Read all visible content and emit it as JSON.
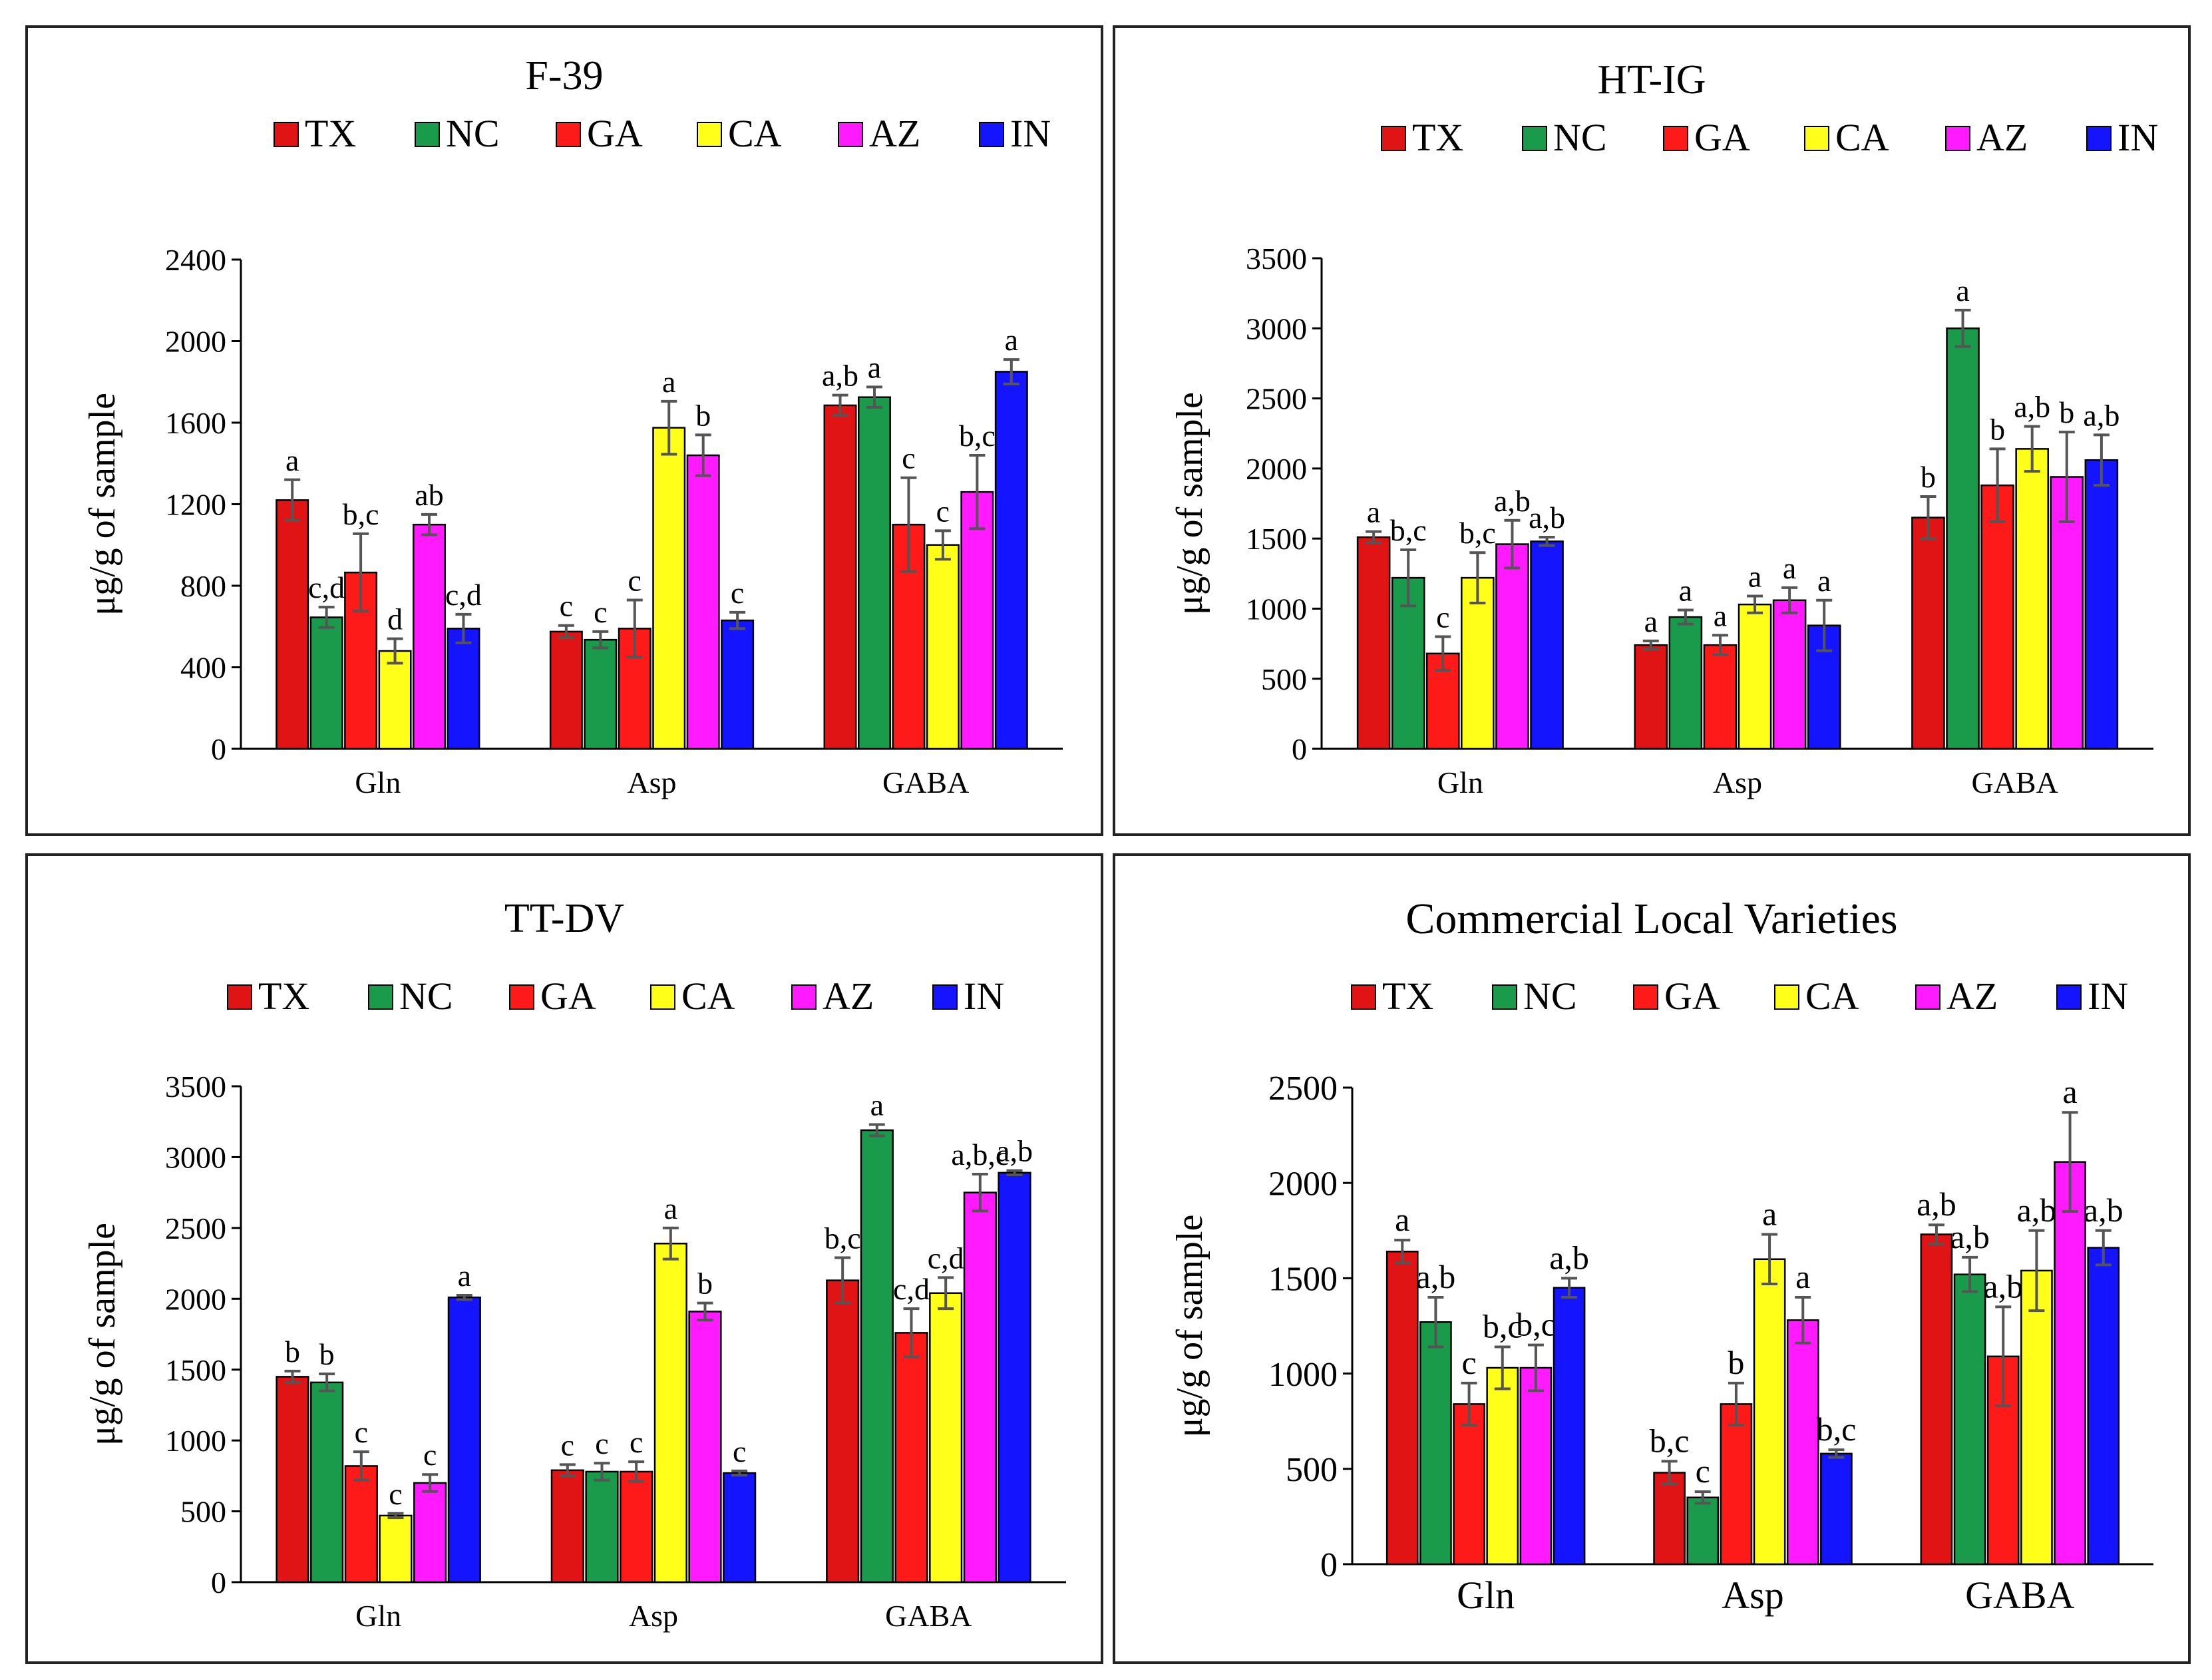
{
  "figure": {
    "series_names": [
      "TX",
      "NC",
      "GA",
      "CA",
      "AZ",
      "IN"
    ],
    "series_colors": [
      "#e01414",
      "#1a9b4b",
      "#ff1a1a",
      "#ffff1a",
      "#ff1aff",
      "#1414ff"
    ],
    "bar_edge_color": "#000000",
    "error_bar_color": "#555555"
  },
  "chart_data": [
    {
      "type": "bar",
      "title": "F-39",
      "ylabel": "μg/g  of sample",
      "xlabel": "",
      "categories": [
        "Gln",
        "Asp",
        "GABA"
      ],
      "ylim": [
        0,
        2400
      ],
      "yticks": [
        0,
        400,
        800,
        1200,
        1600,
        2000,
        2400
      ],
      "series": [
        {
          "name": "TX",
          "values": [
            1220,
            575,
            1685
          ],
          "errors": [
            100,
            30,
            50
          ],
          "letters": [
            "a",
            "c",
            "a,b"
          ]
        },
        {
          "name": "NC",
          "values": [
            645,
            535,
            1725
          ],
          "errors": [
            50,
            40,
            50
          ],
          "letters": [
            "c,d",
            "c",
            "a"
          ]
        },
        {
          "name": "GA",
          "values": [
            865,
            590,
            1100
          ],
          "errors": [
            190,
            140,
            230
          ],
          "letters": [
            "b,c",
            "c",
            "c"
          ]
        },
        {
          "name": "CA",
          "values": [
            480,
            1575,
            1000
          ],
          "errors": [
            60,
            130,
            70
          ],
          "letters": [
            "d",
            "a",
            "c"
          ]
        },
        {
          "name": "AZ",
          "values": [
            1100,
            1440,
            1260
          ],
          "errors": [
            50,
            100,
            180
          ],
          "letters": [
            "ab",
            "b",
            "b,c"
          ]
        },
        {
          "name": "IN",
          "values": [
            590,
            630,
            1850
          ],
          "errors": [
            70,
            40,
            60
          ],
          "letters": [
            "c,d",
            "c",
            "a"
          ]
        }
      ]
    },
    {
      "type": "bar",
      "title": "HT-IG",
      "ylabel": "μg/g  of sample",
      "xlabel": "",
      "categories": [
        "Gln",
        "Asp",
        "GABA"
      ],
      "ylim": [
        0,
        3500
      ],
      "yticks": [
        0,
        500,
        1000,
        1500,
        2000,
        2500,
        3000,
        3500
      ],
      "series": [
        {
          "name": "TX",
          "values": [
            1510,
            740,
            1650
          ],
          "errors": [
            40,
            30,
            150
          ],
          "letters": [
            "a",
            "a",
            "b"
          ]
        },
        {
          "name": "NC",
          "values": [
            1220,
            940,
            3000
          ],
          "errors": [
            200,
            50,
            130
          ],
          "letters": [
            "b,c",
            "a",
            "a"
          ]
        },
        {
          "name": "GA",
          "values": [
            680,
            740,
            1880
          ],
          "errors": [
            120,
            70,
            260
          ],
          "letters": [
            "c",
            "a",
            "b"
          ]
        },
        {
          "name": "CA",
          "values": [
            1220,
            1030,
            2140
          ],
          "errors": [
            180,
            60,
            160
          ],
          "letters": [
            "b,c",
            "a",
            "a,b"
          ]
        },
        {
          "name": "AZ",
          "values": [
            1460,
            1060,
            1940
          ],
          "errors": [
            170,
            90,
            320
          ],
          "letters": [
            "a,b",
            "a",
            "b"
          ]
        },
        {
          "name": "IN",
          "values": [
            1480,
            880,
            2060
          ],
          "errors": [
            30,
            180,
            180
          ],
          "letters": [
            "a,b",
            "a",
            "a,b"
          ]
        }
      ]
    },
    {
      "type": "bar",
      "title": "TT-DV",
      "ylabel": "μg/g  of sample",
      "xlabel": "",
      "categories": [
        "Gln",
        "Asp",
        "GABA"
      ],
      "ylim": [
        0,
        3500
      ],
      "yticks": [
        0,
        500,
        1000,
        1500,
        2000,
        2500,
        3000,
        3500
      ],
      "series": [
        {
          "name": "TX",
          "values": [
            1450,
            790,
            2130
          ],
          "errors": [
            40,
            40,
            160
          ],
          "letters": [
            "b",
            "c",
            "b,c"
          ]
        },
        {
          "name": "NC",
          "values": [
            1410,
            780,
            3190
          ],
          "errors": [
            60,
            60,
            40
          ],
          "letters": [
            "b",
            "c",
            "a"
          ]
        },
        {
          "name": "GA",
          "values": [
            820,
            780,
            1760
          ],
          "errors": [
            100,
            70,
            170
          ],
          "letters": [
            "c",
            "c",
            "c,d"
          ]
        },
        {
          "name": "CA",
          "values": [
            470,
            2390,
            2040
          ],
          "errors": [
            15,
            110,
            110
          ],
          "letters": [
            "c",
            "a",
            "c,d"
          ]
        },
        {
          "name": "AZ",
          "values": [
            700,
            1910,
            2750
          ],
          "errors": [
            60,
            60,
            130
          ],
          "letters": [
            "c",
            "b",
            "a,b,c"
          ]
        },
        {
          "name": "IN",
          "values": [
            2010,
            770,
            2890
          ],
          "errors": [
            15,
            15,
            15
          ],
          "letters": [
            "a",
            "c",
            "a,b"
          ]
        }
      ]
    },
    {
      "type": "bar",
      "title": "Commercial  Local Varieties",
      "ylabel": "μg/g  of sample",
      "xlabel": "",
      "categories": [
        "Gln",
        "Asp",
        "GABA"
      ],
      "ylim": [
        0,
        2500
      ],
      "yticks": [
        0,
        500,
        1000,
        1500,
        2000,
        2500
      ],
      "series": [
        {
          "name": "TX",
          "values": [
            1640,
            480,
            1730
          ],
          "errors": [
            60,
            60,
            50
          ],
          "letters": [
            "a",
            "b,c",
            "a,b"
          ]
        },
        {
          "name": "NC",
          "values": [
            1270,
            350,
            1520
          ],
          "errors": [
            130,
            30,
            90
          ],
          "letters": [
            "a,b",
            "c",
            "a,b"
          ]
        },
        {
          "name": "GA",
          "values": [
            840,
            840,
            1090
          ],
          "errors": [
            110,
            110,
            260
          ],
          "letters": [
            "c",
            "b",
            "a,b"
          ]
        },
        {
          "name": "CA",
          "values": [
            1030,
            1600,
            1540
          ],
          "errors": [
            110,
            130,
            210
          ],
          "letters": [
            "b,c",
            "a",
            "a,b"
          ]
        },
        {
          "name": "AZ",
          "values": [
            1030,
            1280,
            2110
          ],
          "errors": [
            120,
            120,
            260
          ],
          "letters": [
            "b,c",
            "a",
            "a"
          ]
        },
        {
          "name": "IN",
          "values": [
            1450,
            580,
            1660
          ],
          "errors": [
            50,
            20,
            90
          ],
          "letters": [
            "a,b",
            "b,c",
            "a,b"
          ]
        }
      ]
    }
  ]
}
